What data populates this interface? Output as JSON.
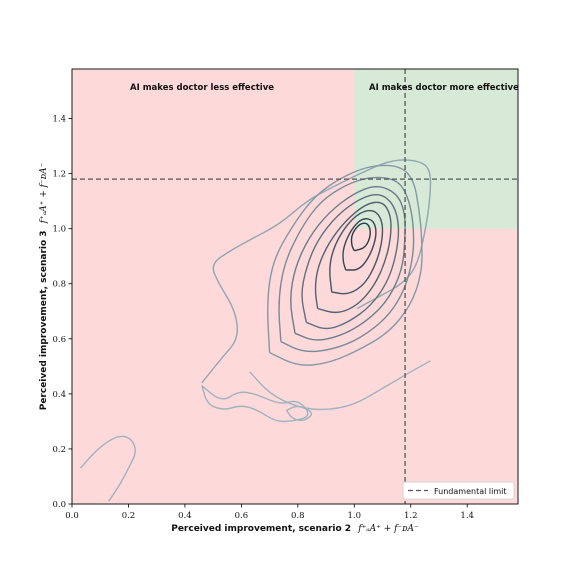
{
  "chart_data": {
    "type": "contour",
    "xlabel": "Perceived improvement, scenario 2",
    "xlabel_math": "f⁺ₐA⁺ + f⁻ᴅA⁻",
    "ylabel": "Perceived improvement, scenario 3",
    "ylabel_math": "f⁺ₐA⁺ + f⁻ᴅA⁻",
    "xlim": [
      0.0,
      1.58
    ],
    "ylim": [
      0.0,
      1.58
    ],
    "xticks": [
      "0.0",
      "0.2",
      "0.4",
      "0.6",
      "0.8",
      "1.0",
      "1.2",
      "1.4"
    ],
    "yticks": [
      "0.0",
      "0.2",
      "0.4",
      "0.6",
      "0.8",
      "1.0",
      "1.2",
      "1.4"
    ],
    "grid": false,
    "regions": [
      {
        "label": "AI makes doctor less effective",
        "color": "#fdd9da"
      },
      {
        "label": "AI makes doctor more effective",
        "color": "#d7ead8",
        "x_from": 1.0,
        "y_from": 1.0
      }
    ],
    "fundamental_limit": {
      "x": 1.18,
      "y": 1.18,
      "style": "dashed",
      "color": "#555555"
    },
    "legend": {
      "entries": [
        "Fundamental limit"
      ],
      "position": "lower right"
    },
    "contour_colors": [
      "#9fb3bf",
      "#2a3a4a"
    ],
    "contour_levels": [
      [
        [
          0.03,
          0.13
        ],
        [
          0.09,
          0.2
        ],
        [
          0.16,
          0.25
        ],
        [
          0.21,
          0.24
        ],
        [
          0.23,
          0.19
        ],
        [
          0.2,
          0.13
        ],
        [
          0.17,
          0.07
        ],
        [
          0.13,
          0.01
        ]
      ],
      [
        [
          0.63,
          0.48
        ],
        [
          0.7,
          0.4
        ],
        [
          0.8,
          0.35
        ],
        [
          0.9,
          0.34
        ],
        [
          1.0,
          0.36
        ],
        [
          1.1,
          0.42
        ],
        [
          1.2,
          0.48
        ],
        [
          1.27,
          0.52
        ]
      ],
      [
        [
          0.76,
          0.34
        ],
        [
          0.8,
          0.36
        ],
        [
          0.86,
          0.33
        ],
        [
          0.82,
          0.3
        ],
        [
          0.78,
          0.31
        ],
        [
          0.76,
          0.34
        ]
      ],
      [
        [
          0.46,
          0.43
        ],
        [
          0.53,
          0.37
        ],
        [
          0.59,
          0.41
        ],
        [
          0.65,
          0.4
        ],
        [
          0.74,
          0.36
        ],
        [
          0.8,
          0.38
        ],
        [
          0.85,
          0.32
        ],
        [
          0.78,
          0.3
        ],
        [
          0.72,
          0.3
        ],
        [
          0.66,
          0.34
        ],
        [
          0.6,
          0.36
        ],
        [
          0.54,
          0.34
        ],
        [
          0.48,
          0.36
        ],
        [
          0.46,
          0.43
        ]
      ],
      [
        [
          0.46,
          0.44
        ],
        [
          0.53,
          0.53
        ],
        [
          0.59,
          0.6
        ],
        [
          0.58,
          0.7
        ],
        [
          0.52,
          0.8
        ],
        [
          0.49,
          0.87
        ],
        [
          0.56,
          0.92
        ],
        [
          0.65,
          0.97
        ],
        [
          0.74,
          1.02
        ],
        [
          0.83,
          1.1
        ],
        [
          0.92,
          1.15
        ],
        [
          1.02,
          1.2
        ],
        [
          1.13,
          1.25
        ],
        [
          1.22,
          1.25
        ],
        [
          1.27,
          1.22
        ],
        [
          1.27,
          1.12
        ],
        [
          1.25,
          0.98
        ],
        [
          1.22,
          0.86
        ],
        [
          1.17,
          0.8
        ],
        [
          1.1,
          0.76
        ],
        [
          1.01,
          0.71
        ]
      ],
      [
        [
          0.7,
          0.55
        ],
        [
          0.8,
          0.5
        ],
        [
          0.9,
          0.51
        ],
        [
          1.0,
          0.55
        ],
        [
          1.12,
          0.62
        ],
        [
          1.2,
          0.72
        ],
        [
          1.24,
          0.84
        ],
        [
          1.24,
          0.96
        ],
        [
          1.23,
          1.07
        ],
        [
          1.21,
          1.18
        ],
        [
          1.16,
          1.23
        ],
        [
          1.06,
          1.23
        ],
        [
          0.96,
          1.19
        ],
        [
          0.86,
          1.12
        ],
        [
          0.78,
          1.01
        ],
        [
          0.71,
          0.88
        ],
        [
          0.69,
          0.73
        ],
        [
          0.7,
          0.55
        ]
      ],
      [
        [
          0.74,
          0.59
        ],
        [
          0.82,
          0.55
        ],
        [
          0.92,
          0.56
        ],
        [
          1.02,
          0.6
        ],
        [
          1.12,
          0.68
        ],
        [
          1.18,
          0.78
        ],
        [
          1.21,
          0.9
        ],
        [
          1.21,
          1.02
        ],
        [
          1.19,
          1.12
        ],
        [
          1.15,
          1.18
        ],
        [
          1.06,
          1.19
        ],
        [
          0.97,
          1.16
        ],
        [
          0.88,
          1.1
        ],
        [
          0.81,
          1.0
        ],
        [
          0.75,
          0.87
        ],
        [
          0.73,
          0.73
        ],
        [
          0.74,
          0.59
        ]
      ],
      [
        [
          0.79,
          0.62
        ],
        [
          0.86,
          0.59
        ],
        [
          0.95,
          0.61
        ],
        [
          1.04,
          0.66
        ],
        [
          1.12,
          0.74
        ],
        [
          1.17,
          0.85
        ],
        [
          1.18,
          0.96
        ],
        [
          1.18,
          1.06
        ],
        [
          1.15,
          1.13
        ],
        [
          1.08,
          1.16
        ],
        [
          1.0,
          1.13
        ],
        [
          0.91,
          1.06
        ],
        [
          0.84,
          0.97
        ],
        [
          0.79,
          0.86
        ],
        [
          0.77,
          0.74
        ],
        [
          0.79,
          0.62
        ]
      ],
      [
        [
          0.83,
          0.66
        ],
        [
          0.9,
          0.63
        ],
        [
          0.98,
          0.66
        ],
        [
          1.06,
          0.72
        ],
        [
          1.12,
          0.81
        ],
        [
          1.15,
          0.91
        ],
        [
          1.16,
          1.01
        ],
        [
          1.14,
          1.09
        ],
        [
          1.09,
          1.13
        ],
        [
          1.02,
          1.11
        ],
        [
          0.94,
          1.05
        ],
        [
          0.87,
          0.96
        ],
        [
          0.83,
          0.86
        ],
        [
          0.81,
          0.76
        ],
        [
          0.83,
          0.66
        ]
      ],
      [
        [
          0.87,
          0.71
        ],
        [
          0.94,
          0.69
        ],
        [
          1.01,
          0.72
        ],
        [
          1.07,
          0.79
        ],
        [
          1.11,
          0.88
        ],
        [
          1.13,
          0.97
        ],
        [
          1.13,
          1.05
        ],
        [
          1.1,
          1.1
        ],
        [
          1.04,
          1.09
        ],
        [
          0.97,
          1.03
        ],
        [
          0.91,
          0.95
        ],
        [
          0.87,
          0.86
        ],
        [
          0.86,
          0.78
        ],
        [
          0.87,
          0.71
        ]
      ],
      [
        [
          0.92,
          0.77
        ],
        [
          0.98,
          0.76
        ],
        [
          1.04,
          0.8
        ],
        [
          1.08,
          0.88
        ],
        [
          1.1,
          0.96
        ],
        [
          1.1,
          1.03
        ],
        [
          1.07,
          1.07
        ],
        [
          1.02,
          1.06
        ],
        [
          0.97,
          1.01
        ],
        [
          0.93,
          0.94
        ],
        [
          0.91,
          0.86
        ],
        [
          0.92,
          0.77
        ]
      ],
      [
        [
          0.97,
          0.85
        ],
        [
          1.02,
          0.85
        ],
        [
          1.06,
          0.91
        ],
        [
          1.08,
          0.98
        ],
        [
          1.07,
          1.03
        ],
        [
          1.03,
          1.04
        ],
        [
          0.99,
          1.0
        ],
        [
          0.96,
          0.93
        ],
        [
          0.96,
          0.88
        ],
        [
          0.97,
          0.85
        ]
      ],
      [
        [
          1.0,
          0.92
        ],
        [
          1.04,
          0.93
        ],
        [
          1.06,
          0.98
        ],
        [
          1.05,
          1.02
        ],
        [
          1.02,
          1.02
        ],
        [
          0.99,
          0.98
        ],
        [
          0.99,
          0.94
        ],
        [
          1.0,
          0.92
        ]
      ]
    ]
  }
}
